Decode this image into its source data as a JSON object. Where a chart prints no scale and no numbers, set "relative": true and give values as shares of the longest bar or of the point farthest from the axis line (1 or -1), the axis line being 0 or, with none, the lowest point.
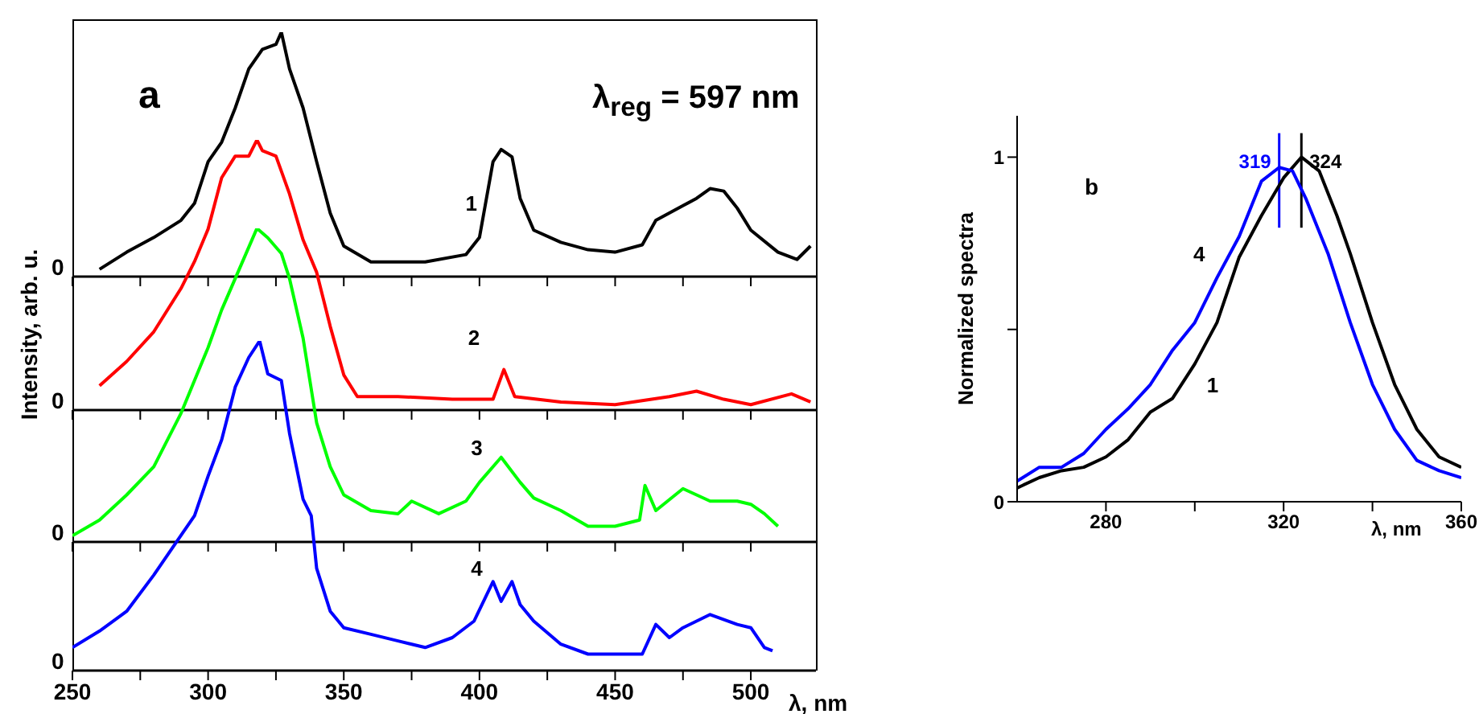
{
  "chart_data": [
    {
      "type": "line",
      "title": "a",
      "ylabel": "Intensity, arb. u.",
      "annotations": [
        "λ$_{reg}$ = 597 nm",
        "0"
      ],
      "relative": true,
      "xlim": [
        250,
        524
      ],
      "xticks": [
        250,
        {
          "value": 275,
          "label": null
        },
        300,
        {
          "value": 325,
          "label": null
        },
        350,
        {
          "value": 375,
          "label": null
        },
        400,
        {
          "value": 425,
          "label": null
        },
        450,
        {
          "value": 475,
          "label": null
        },
        500
      ],
      "tick_labels": false,
      "series": [
        {
          "name": "1",
          "color": "#000000",
          "x": [
            260,
            270,
            280,
            290,
            295,
            300,
            305,
            310,
            315,
            320,
            325,
            327,
            330,
            335,
            340,
            345,
            350,
            360,
            380,
            395,
            400,
            405,
            408,
            412,
            415,
            420,
            430,
            440,
            450,
            460,
            465,
            475,
            480,
            485,
            490,
            495,
            500,
            510,
            517,
            522
          ],
          "values": [
            0.03,
            0.1,
            0.16,
            0.23,
            0.3,
            0.47,
            0.55,
            0.69,
            0.85,
            0.93,
            0.95,
            1.0,
            0.85,
            0.69,
            0.47,
            0.26,
            0.125,
            0.06,
            0.06,
            0.09,
            0.16,
            0.47,
            0.52,
            0.49,
            0.32,
            0.19,
            0.14,
            0.11,
            0.1,
            0.13,
            0.23,
            0.29,
            0.32,
            0.36,
            0.35,
            0.28,
            0.19,
            0.1,
            0.07,
            0.125
          ]
        }
      ]
    },
    {
      "type": "line",
      "annotations": [
        "0"
      ],
      "relative": true,
      "xlim": [
        250,
        524
      ],
      "xticks": [
        250,
        {
          "value": 275,
          "label": null
        },
        300,
        {
          "value": 325,
          "label": null
        },
        350,
        {
          "value": 375,
          "label": null
        },
        400,
        {
          "value": 425,
          "label": null
        },
        450,
        {
          "value": 475,
          "label": null
        },
        500
      ],
      "tick_labels": false,
      "series": [
        {
          "name": "2",
          "color": "#ff0000",
          "x": [
            260,
            270,
            280,
            290,
            295,
            300,
            305,
            310,
            315,
            318,
            320,
            325,
            330,
            335,
            340,
            345,
            350,
            355,
            370,
            390,
            405,
            409,
            413,
            430,
            450,
            470,
            480,
            490,
            500,
            515,
            522
          ],
          "values": [
            0.09,
            0.18,
            0.29,
            0.45,
            0.55,
            0.67,
            0.86,
            0.94,
            0.94,
            1.0,
            0.96,
            0.94,
            0.8,
            0.63,
            0.51,
            0.31,
            0.13,
            0.05,
            0.05,
            0.04,
            0.04,
            0.15,
            0.05,
            0.03,
            0.02,
            0.05,
            0.07,
            0.04,
            0.02,
            0.06,
            0.03
          ]
        }
      ]
    },
    {
      "type": "line",
      "annotations": [
        "0"
      ],
      "relative": true,
      "xlim": [
        250,
        524
      ],
      "xticks": [
        250,
        {
          "value": 275,
          "label": null
        },
        300,
        {
          "value": 325,
          "label": null
        },
        350,
        {
          "value": 375,
          "label": null
        },
        400,
        {
          "value": 425,
          "label": null
        },
        450,
        {
          "value": 475,
          "label": null
        },
        500
      ],
      "tick_labels": false,
      "series": [
        {
          "name": "3",
          "color": "#00ff00",
          "x": [
            250,
            260,
            270,
            280,
            290,
            300,
            305,
            310,
            315,
            318,
            322,
            327,
            330,
            335,
            340,
            345,
            350,
            360,
            370,
            375,
            385,
            395,
            400,
            408,
            415,
            420,
            430,
            440,
            450,
            459,
            461,
            465,
            475,
            485,
            495,
            500,
            505,
            510
          ],
          "values": [
            0.02,
            0.07,
            0.15,
            0.24,
            0.41,
            0.62,
            0.74,
            0.84,
            0.94,
            1.0,
            0.97,
            0.92,
            0.84,
            0.65,
            0.38,
            0.24,
            0.15,
            0.1,
            0.09,
            0.13,
            0.09,
            0.13,
            0.19,
            0.27,
            0.19,
            0.14,
            0.1,
            0.05,
            0.05,
            0.07,
            0.18,
            0.1,
            0.17,
            0.13,
            0.13,
            0.12,
            0.09,
            0.05
          ]
        }
      ]
    },
    {
      "type": "line",
      "xlabel": "λ, nm",
      "annotations": [
        "0"
      ],
      "relative": true,
      "xlim": [
        250,
        524
      ],
      "xticks": [
        250,
        {
          "value": 275,
          "label": null
        },
        300,
        {
          "value": 325,
          "label": null
        },
        350,
        {
          "value": 375,
          "label": null
        },
        400,
        {
          "value": 425,
          "label": null
        },
        450,
        {
          "value": 475,
          "label": null
        },
        500
      ],
      "tick_labels": "x",
      "series": [
        {
          "name": "4",
          "color": "#0000ff",
          "x": [
            250,
            260,
            270,
            280,
            290,
            295,
            300,
            305,
            310,
            315,
            319,
            322,
            327,
            330,
            335,
            338,
            340,
            345,
            350,
            360,
            370,
            380,
            390,
            398,
            405,
            408,
            412,
            415,
            420,
            430,
            440,
            450,
            460,
            465,
            470,
            475,
            485,
            495,
            500,
            505,
            508
          ],
          "values": [
            0.07,
            0.12,
            0.18,
            0.29,
            0.41,
            0.47,
            0.59,
            0.7,
            0.86,
            0.95,
            1.0,
            0.9,
            0.88,
            0.72,
            0.52,
            0.47,
            0.31,
            0.18,
            0.13,
            0.11,
            0.09,
            0.07,
            0.1,
            0.15,
            0.27,
            0.21,
            0.27,
            0.2,
            0.15,
            0.08,
            0.05,
            0.05,
            0.05,
            0.14,
            0.1,
            0.13,
            0.17,
            0.14,
            0.13,
            0.07,
            0.06
          ]
        }
      ]
    },
    {
      "type": "line",
      "title": "b",
      "xlabel": "λ, nm",
      "ylabel": "Normalized spectra",
      "xlim": [
        260,
        360
      ],
      "xticks": [
        280,
        {
          "value": 300,
          "label": null
        },
        320,
        {
          "value": 340,
          "label": null
        },
        360
      ],
      "ylim": [
        0,
        1.12
      ],
      "yticks": [
        0,
        {
          "value": 0.5,
          "label": null
        },
        1
      ],
      "ref_lines": [
        {
          "axis": "x",
          "value": 319,
          "label": "319",
          "color": "#0000ff"
        },
        {
          "axis": "x",
          "value": 324,
          "label": "324",
          "color": "#000000"
        }
      ],
      "series": [
        {
          "name": "1",
          "color": "#000000",
          "x": [
            260,
            265,
            270,
            275,
            280,
            285,
            290,
            295,
            300,
            305,
            310,
            315,
            320,
            324,
            328,
            332,
            335,
            340,
            345,
            350,
            355,
            360
          ],
          "values": [
            0.04,
            0.07,
            0.09,
            0.1,
            0.13,
            0.18,
            0.26,
            0.3,
            0.4,
            0.52,
            0.71,
            0.83,
            0.94,
            1.0,
            0.96,
            0.83,
            0.72,
            0.52,
            0.34,
            0.21,
            0.13,
            0.1
          ]
        },
        {
          "name": "4",
          "color": "#0000ff",
          "x": [
            260,
            265,
            270,
            275,
            280,
            285,
            290,
            295,
            300,
            305,
            310,
            315,
            319,
            322,
            325,
            330,
            335,
            340,
            345,
            350,
            355,
            360
          ],
          "values": [
            0.06,
            0.1,
            0.1,
            0.14,
            0.21,
            0.27,
            0.34,
            0.44,
            0.52,
            0.65,
            0.77,
            0.93,
            0.97,
            0.96,
            0.88,
            0.72,
            0.52,
            0.34,
            0.21,
            0.12,
            0.09,
            0.07
          ]
        }
      ]
    }
  ]
}
